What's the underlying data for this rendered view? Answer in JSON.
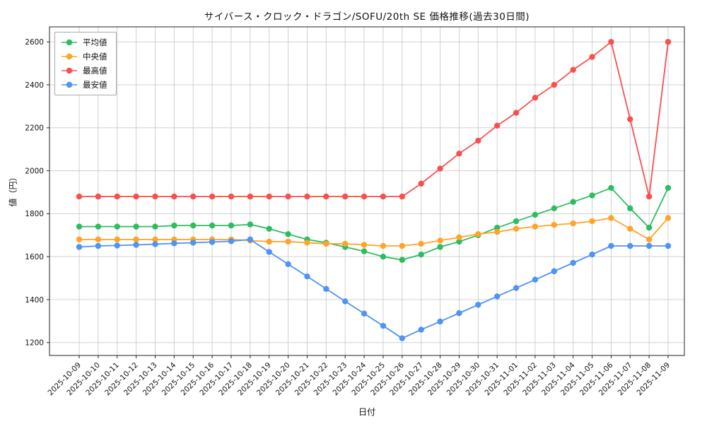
{
  "chart_data": {
    "type": "line",
    "title": "サイバース・クロック・ドラゴン/SOFU/20th SE 価格推移(過去30日間)",
    "xlabel": "日付",
    "ylabel": "値（円）",
    "grid": true,
    "legend_position": "upper left",
    "ylim": [
      1140,
      2670
    ],
    "yticks": [
      1200,
      1400,
      1600,
      1800,
      2000,
      2200,
      2400,
      2600
    ],
    "categories": [
      "2025-10-09",
      "2025-10-10",
      "2025-10-11",
      "2025-10-12",
      "2025-10-13",
      "2025-10-14",
      "2025-10-15",
      "2025-10-16",
      "2025-10-17",
      "2025-10-18",
      "2025-10-19",
      "2025-10-20",
      "2025-10-21",
      "2025-10-22",
      "2025-10-23",
      "2025-10-24",
      "2025-10-25",
      "2025-10-26",
      "2025-10-27",
      "2025-10-28",
      "2025-10-29",
      "2025-10-30",
      "2025-10-31",
      "2025-11-01",
      "2025-11-02",
      "2025-11-03",
      "2025-11-04",
      "2025-11-05",
      "2025-11-06",
      "2025-11-07",
      "2025-11-08",
      "2025-11-09"
    ],
    "series": [
      {
        "name": "平均値",
        "color": "#2dbd5f",
        "values": [
          1740,
          1740,
          1740,
          1740,
          1740,
          1745,
          1745,
          1745,
          1745,
          1750,
          1730,
          1705,
          1680,
          1665,
          1645,
          1625,
          1600,
          1585,
          1610,
          1645,
          1670,
          1700,
          1735,
          1765,
          1795,
          1825,
          1855,
          1885,
          1920,
          1825,
          1735,
          1920
        ]
      },
      {
        "name": "中央値",
        "color": "#ffa428",
        "values": [
          1680,
          1680,
          1680,
          1680,
          1680,
          1680,
          1680,
          1680,
          1680,
          1675,
          1670,
          1670,
          1665,
          1660,
          1660,
          1655,
          1650,
          1650,
          1660,
          1675,
          1690,
          1705,
          1715,
          1730,
          1740,
          1748,
          1755,
          1765,
          1780,
          1730,
          1680,
          1780
        ]
      },
      {
        "name": "最高値",
        "color": "#fa4f4f",
        "values": [
          1880,
          1880,
          1880,
          1880,
          1880,
          1880,
          1880,
          1880,
          1880,
          1880,
          1880,
          1880,
          1880,
          1880,
          1880,
          1880,
          1880,
          1880,
          1940,
          2010,
          2080,
          2140,
          2210,
          2270,
          2340,
          2400,
          2470,
          2530,
          2600,
          2240,
          1880,
          2600
        ]
      },
      {
        "name": "最安値",
        "color": "#4e93f5",
        "values": [
          1645,
          1650,
          1652,
          1655,
          1658,
          1662,
          1665,
          1668,
          1672,
          1680,
          1622,
          1565,
          1508,
          1450,
          1392,
          1335,
          1278,
          1220,
          1260,
          1298,
          1337,
          1376,
          1415,
          1454,
          1493,
          1532,
          1571,
          1610,
          1650,
          1650,
          1650,
          1650
        ]
      }
    ]
  }
}
